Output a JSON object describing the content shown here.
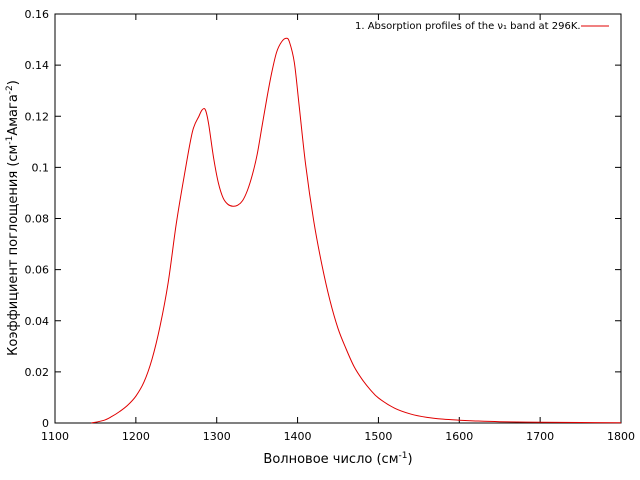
{
  "chart_data": {
    "type": "line",
    "title": "",
    "xlabel": "Волновое число (см",
    "xlabel_sup": "-1",
    "xlabel_end": ")",
    "ylabel": "Коэффициент поглощения (см",
    "ylabel_sup1": "-1",
    "ylabel_mid": "Амага",
    "ylabel_sup2": "-2",
    "ylabel_end": ")",
    "xlim": [
      1100,
      1800
    ],
    "ylim": [
      0,
      0.16
    ],
    "x_ticks": [
      "1100",
      "1200",
      "1300",
      "1400",
      "1500",
      "1600",
      "1700",
      "1800"
    ],
    "y_ticks": [
      "0",
      "0.02",
      "0.04",
      "0.06",
      "0.08",
      "0.1",
      "0.12",
      "0.14",
      "0.16"
    ],
    "grid": false,
    "legend_position": "top-right",
    "series": [
      {
        "name": "1. Absorption profiles of the ν₁ band at 296K.",
        "color": "#e00000",
        "points": [
          [
            1145,
            0.0
          ],
          [
            1160,
            0.001
          ],
          [
            1170,
            0.0025
          ],
          [
            1180,
            0.0045
          ],
          [
            1190,
            0.007
          ],
          [
            1200,
            0.0105
          ],
          [
            1210,
            0.016
          ],
          [
            1220,
            0.025
          ],
          [
            1230,
            0.038
          ],
          [
            1240,
            0.055
          ],
          [
            1250,
            0.078
          ],
          [
            1260,
            0.097
          ],
          [
            1270,
            0.114
          ],
          [
            1278,
            0.12
          ],
          [
            1282,
            0.1225
          ],
          [
            1286,
            0.1225
          ],
          [
            1290,
            0.117
          ],
          [
            1296,
            0.104
          ],
          [
            1302,
            0.094
          ],
          [
            1308,
            0.088
          ],
          [
            1314,
            0.0855
          ],
          [
            1320,
            0.0848
          ],
          [
            1326,
            0.0852
          ],
          [
            1332,
            0.087
          ],
          [
            1338,
            0.091
          ],
          [
            1344,
            0.097
          ],
          [
            1350,
            0.105
          ],
          [
            1356,
            0.116
          ],
          [
            1362,
            0.127
          ],
          [
            1368,
            0.137
          ],
          [
            1374,
            0.145
          ],
          [
            1380,
            0.149
          ],
          [
            1386,
            0.1505
          ],
          [
            1390,
            0.149
          ],
          [
            1396,
            0.141
          ],
          [
            1402,
            0.124
          ],
          [
            1410,
            0.101
          ],
          [
            1420,
            0.079
          ],
          [
            1430,
            0.062
          ],
          [
            1440,
            0.048
          ],
          [
            1450,
            0.037
          ],
          [
            1460,
            0.029
          ],
          [
            1470,
            0.022
          ],
          [
            1480,
            0.017
          ],
          [
            1490,
            0.013
          ],
          [
            1500,
            0.0098
          ],
          [
            1520,
            0.0058
          ],
          [
            1540,
            0.0035
          ],
          [
            1560,
            0.0022
          ],
          [
            1580,
            0.0015
          ],
          [
            1600,
            0.0011
          ],
          [
            1620,
            0.0008
          ],
          [
            1650,
            0.0005
          ],
          [
            1700,
            0.0003
          ],
          [
            1750,
            0.0002
          ],
          [
            1800,
            0.0001
          ]
        ]
      }
    ]
  }
}
